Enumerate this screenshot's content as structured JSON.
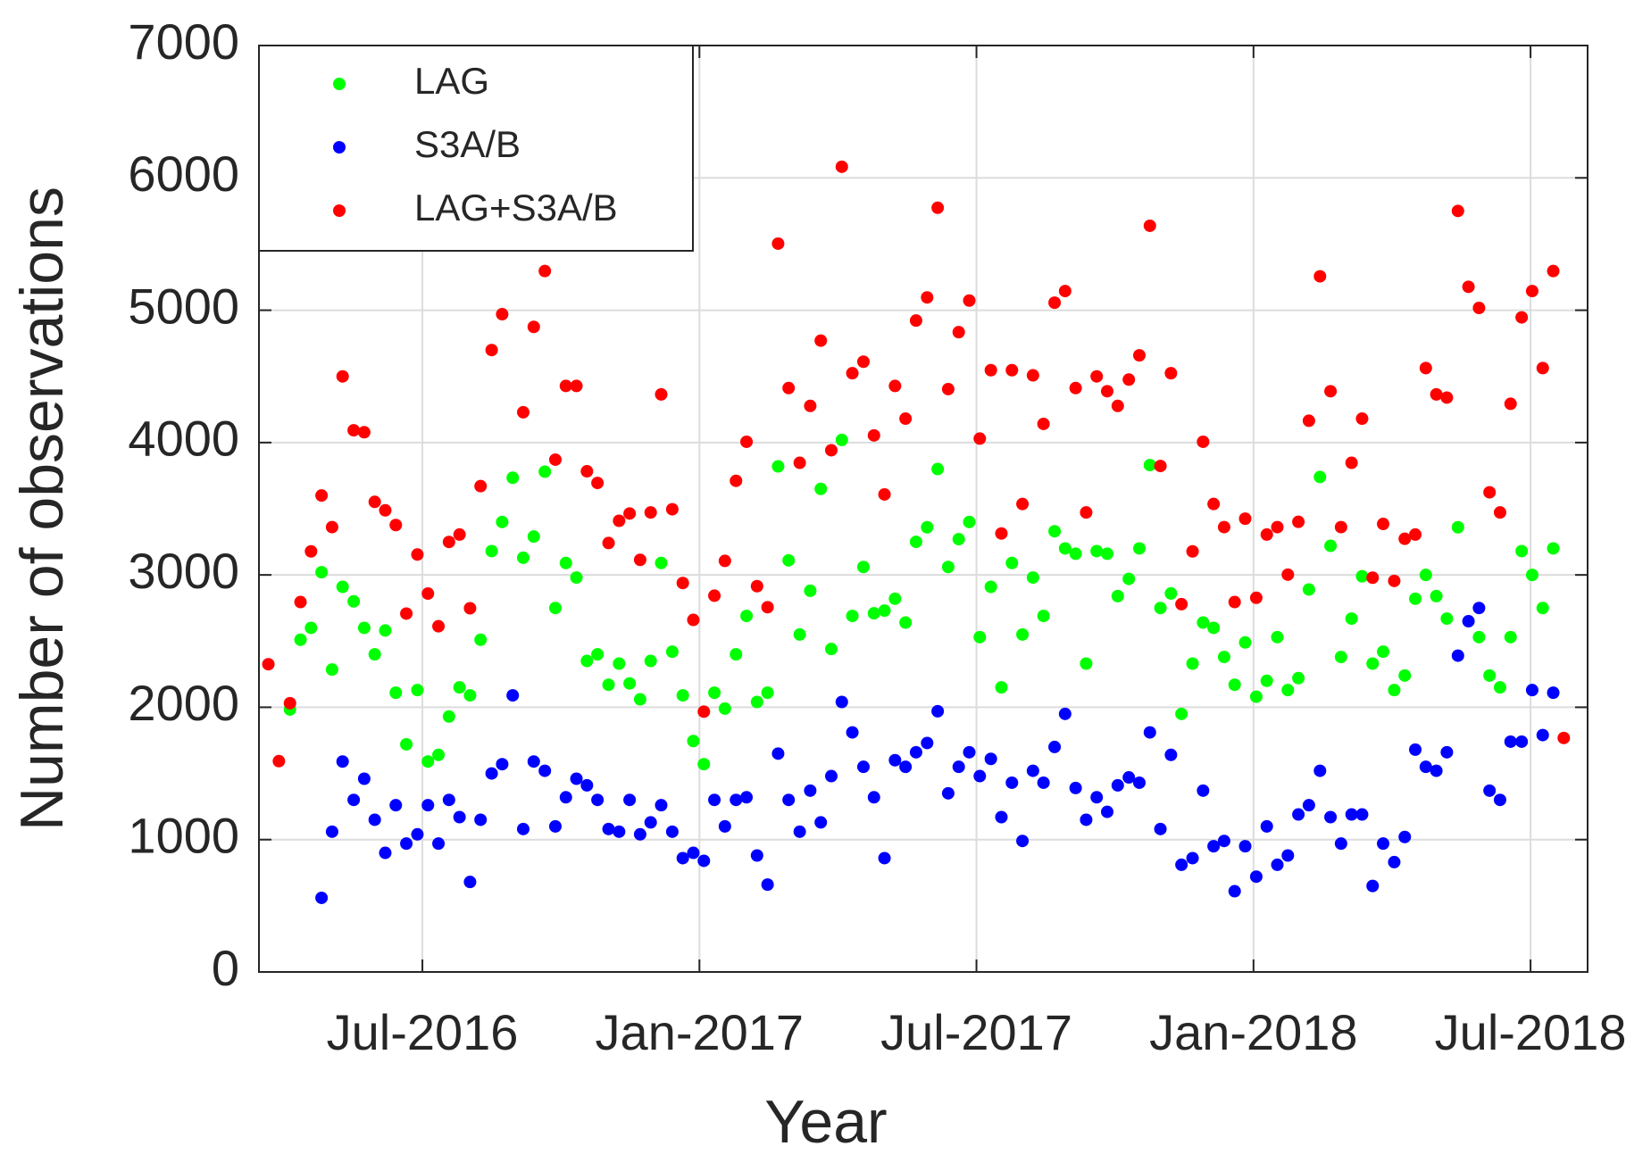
{
  "chart_data": {
    "type": "scatter",
    "xlabel": "Year",
    "ylabel": "Number of observations",
    "xlim": [
      2016.205,
      2018.603
    ],
    "ylim": [
      0,
      7000
    ],
    "xticks": [
      {
        "value": 2016.5,
        "label": "Jul-2016"
      },
      {
        "value": 2017,
        "label": "Jan-2017"
      },
      {
        "value": 2017.5,
        "label": "Jul-2017"
      },
      {
        "value": 2018,
        "label": "Jan-2018"
      },
      {
        "value": 2018.5,
        "label": "Jul-2018"
      }
    ],
    "yticks": [
      0,
      1000,
      2000,
      3000,
      4000,
      5000,
      6000,
      7000
    ],
    "grid": true,
    "legend": "upper left",
    "x": [
      2016.222,
      2016.241,
      2016.261,
      2016.28,
      2016.299,
      2016.318,
      2016.337,
      2016.356,
      2016.376,
      2016.395,
      2016.414,
      2016.433,
      2016.452,
      2016.471,
      2016.491,
      2016.51,
      2016.529,
      2016.548,
      2016.567,
      2016.586,
      2016.605,
      2016.625,
      2016.644,
      2016.663,
      2016.682,
      2016.701,
      2016.721,
      2016.74,
      2016.759,
      2016.778,
      2016.797,
      2016.816,
      2016.836,
      2016.855,
      2016.874,
      2016.893,
      2016.912,
      2016.931,
      2016.951,
      2016.97,
      2016.989,
      2017.008,
      2017.027,
      2017.046,
      2017.066,
      2017.085,
      2017.104,
      2017.123,
      2017.142,
      2017.161,
      2017.181,
      2017.2,
      2017.219,
      2017.238,
      2017.257,
      2017.276,
      2017.296,
      2017.315,
      2017.334,
      2017.353,
      2017.372,
      2017.391,
      2017.411,
      2017.43,
      2017.449,
      2017.468,
      2017.487,
      2017.506,
      2017.526,
      2017.545,
      2017.564,
      2017.583,
      2017.602,
      2017.621,
      2017.641,
      2017.66,
      2017.679,
      2017.698,
      2017.717,
      2017.736,
      2017.755,
      2017.775,
      2017.794,
      2017.813,
      2017.832,
      2017.851,
      2017.87,
      2017.89,
      2017.909,
      2017.928,
      2017.947,
      2017.966,
      2017.985,
      2018.005,
      2018.024,
      2018.043,
      2018.062,
      2018.081,
      2018.1,
      2018.12,
      2018.139,
      2018.158,
      2018.177,
      2018.196,
      2018.215,
      2018.234,
      2018.254,
      2018.273,
      2018.292,
      2018.311,
      2018.33,
      2018.349,
      2018.369,
      2018.388,
      2018.407,
      2018.426,
      2018.445,
      2018.464,
      2018.484,
      2018.503,
      2018.522,
      2018.541,
      2018.56
    ],
    "series": [
      {
        "name": "LAG",
        "color": "#00ff00",
        "values": [
          null,
          null,
          1983,
          2510,
          2600,
          3020,
          2285,
          2910,
          2800,
          2600,
          2400,
          2580,
          2110,
          1720,
          2130,
          1590,
          1640,
          1930,
          2150,
          2090,
          2510,
          3180,
          3400,
          3734,
          3130,
          3290,
          3780,
          2750,
          3090,
          2980,
          2350,
          2400,
          2170,
          2330,
          2180,
          2060,
          2350,
          3090,
          2420,
          2090,
          1745,
          1570,
          2110,
          1990,
          2400,
          2690,
          2040,
          2110,
          3820,
          3110,
          2550,
          2880,
          3650,
          2440,
          4020,
          2690,
          3060,
          2710,
          2730,
          2820,
          2640,
          3250,
          3360,
          3800,
          3060,
          3270,
          3400,
          2530,
          2910,
          2150,
          3090,
          2550,
          2980,
          2690,
          3330,
          3200,
          3160,
          2330,
          3180,
          3160,
          2840,
          2970,
          3200,
          3830,
          2750,
          2860,
          1950,
          2330,
          2640,
          2600,
          2380,
          2170,
          2490,
          2080,
          2200,
          2530,
          2130,
          2220,
          2890,
          3740,
          3220,
          2380,
          2670,
          2990,
          2330,
          2420,
          2130,
          2240,
          2820,
          3000,
          2840,
          2670,
          3360,
          null,
          2530,
          2240,
          2150,
          2530,
          3180,
          3000,
          2750,
          3200,
          null
        ]
      },
      {
        "name": "S3A/B",
        "color": "#0000ff",
        "values": [
          null,
          null,
          null,
          null,
          null,
          560,
          1060,
          1590,
          1300,
          1460,
          1150,
          900,
          1260,
          970,
          1040,
          1260,
          970,
          1300,
          1170,
          680,
          1150,
          1500,
          1570,
          2090,
          1080,
          1590,
          1520,
          1100,
          1320,
          1460,
          1410,
          1300,
          1080,
          1060,
          1300,
          1040,
          1130,
          1260,
          1060,
          860,
          900,
          840,
          1300,
          1100,
          1300,
          1320,
          880,
          660,
          1650,
          1300,
          1060,
          1370,
          1130,
          1480,
          2040,
          1810,
          1550,
          1320,
          860,
          1600,
          1550,
          1660,
          1730,
          1970,
          1350,
          1550,
          1660,
          1480,
          1610,
          1170,
          1430,
          990,
          1520,
          1430,
          1700,
          1950,
          1390,
          1150,
          1320,
          1210,
          1410,
          1470,
          1430,
          1810,
          1080,
          1640,
          810,
          860,
          1370,
          950,
          990,
          610,
          950,
          720,
          1100,
          810,
          880,
          1190,
          1260,
          1520,
          1170,
          970,
          1190,
          1190,
          650,
          970,
          830,
          1020,
          1680,
          1550,
          1520,
          1660,
          2390,
          2650,
          2750,
          1370,
          1300,
          1740,
          1740,
          2130,
          1790,
          2110,
          null
        ]
      },
      {
        "name": "LAG+S3A/B",
        "color": "#ff0000",
        "values": [
          2325,
          1593,
          2031,
          2795,
          3178,
          3600,
          3361,
          4500,
          4093,
          4078,
          3552,
          3488,
          3377,
          2708,
          3154,
          2859,
          2612,
          3249,
          3305,
          2748,
          3671,
          4699,
          4970,
          null,
          4229,
          4874,
          5296,
          3871,
          4428,
          4428,
          3783,
          3695,
          3241,
          3409,
          3464,
          3114,
          3472,
          4364,
          3496,
          2939,
          2660,
          1967,
          2843,
          3106,
          3711,
          4006,
          2915,
          2756,
          5503,
          4412,
          3847,
          4277,
          4770,
          3942,
          6084,
          4524,
          4611,
          4054,
          3608,
          4428,
          4181,
          4922,
          5097,
          5774,
          4404,
          4834,
          5073,
          4030,
          4547,
          3313,
          4547,
          3536,
          4508,
          4141,
          5057,
          5145,
          4412,
          3472,
          4500,
          4388,
          4277,
          4476,
          4659,
          5638,
          3823,
          4524,
          2779,
          3178,
          4006,
          3536,
          3361,
          2795,
          3425,
          2827,
          3305,
          3361,
          3002,
          3401,
          4165,
          5256,
          4388,
          3361,
          3847,
          4181,
          2979,
          3385,
          2955,
          3273,
          3305,
          4563,
          4364,
          4340,
          5750,
          5177,
          5017,
          3624,
          3472,
          4293,
          4946,
          5145,
          4563,
          5296,
          1768
        ]
      }
    ]
  }
}
